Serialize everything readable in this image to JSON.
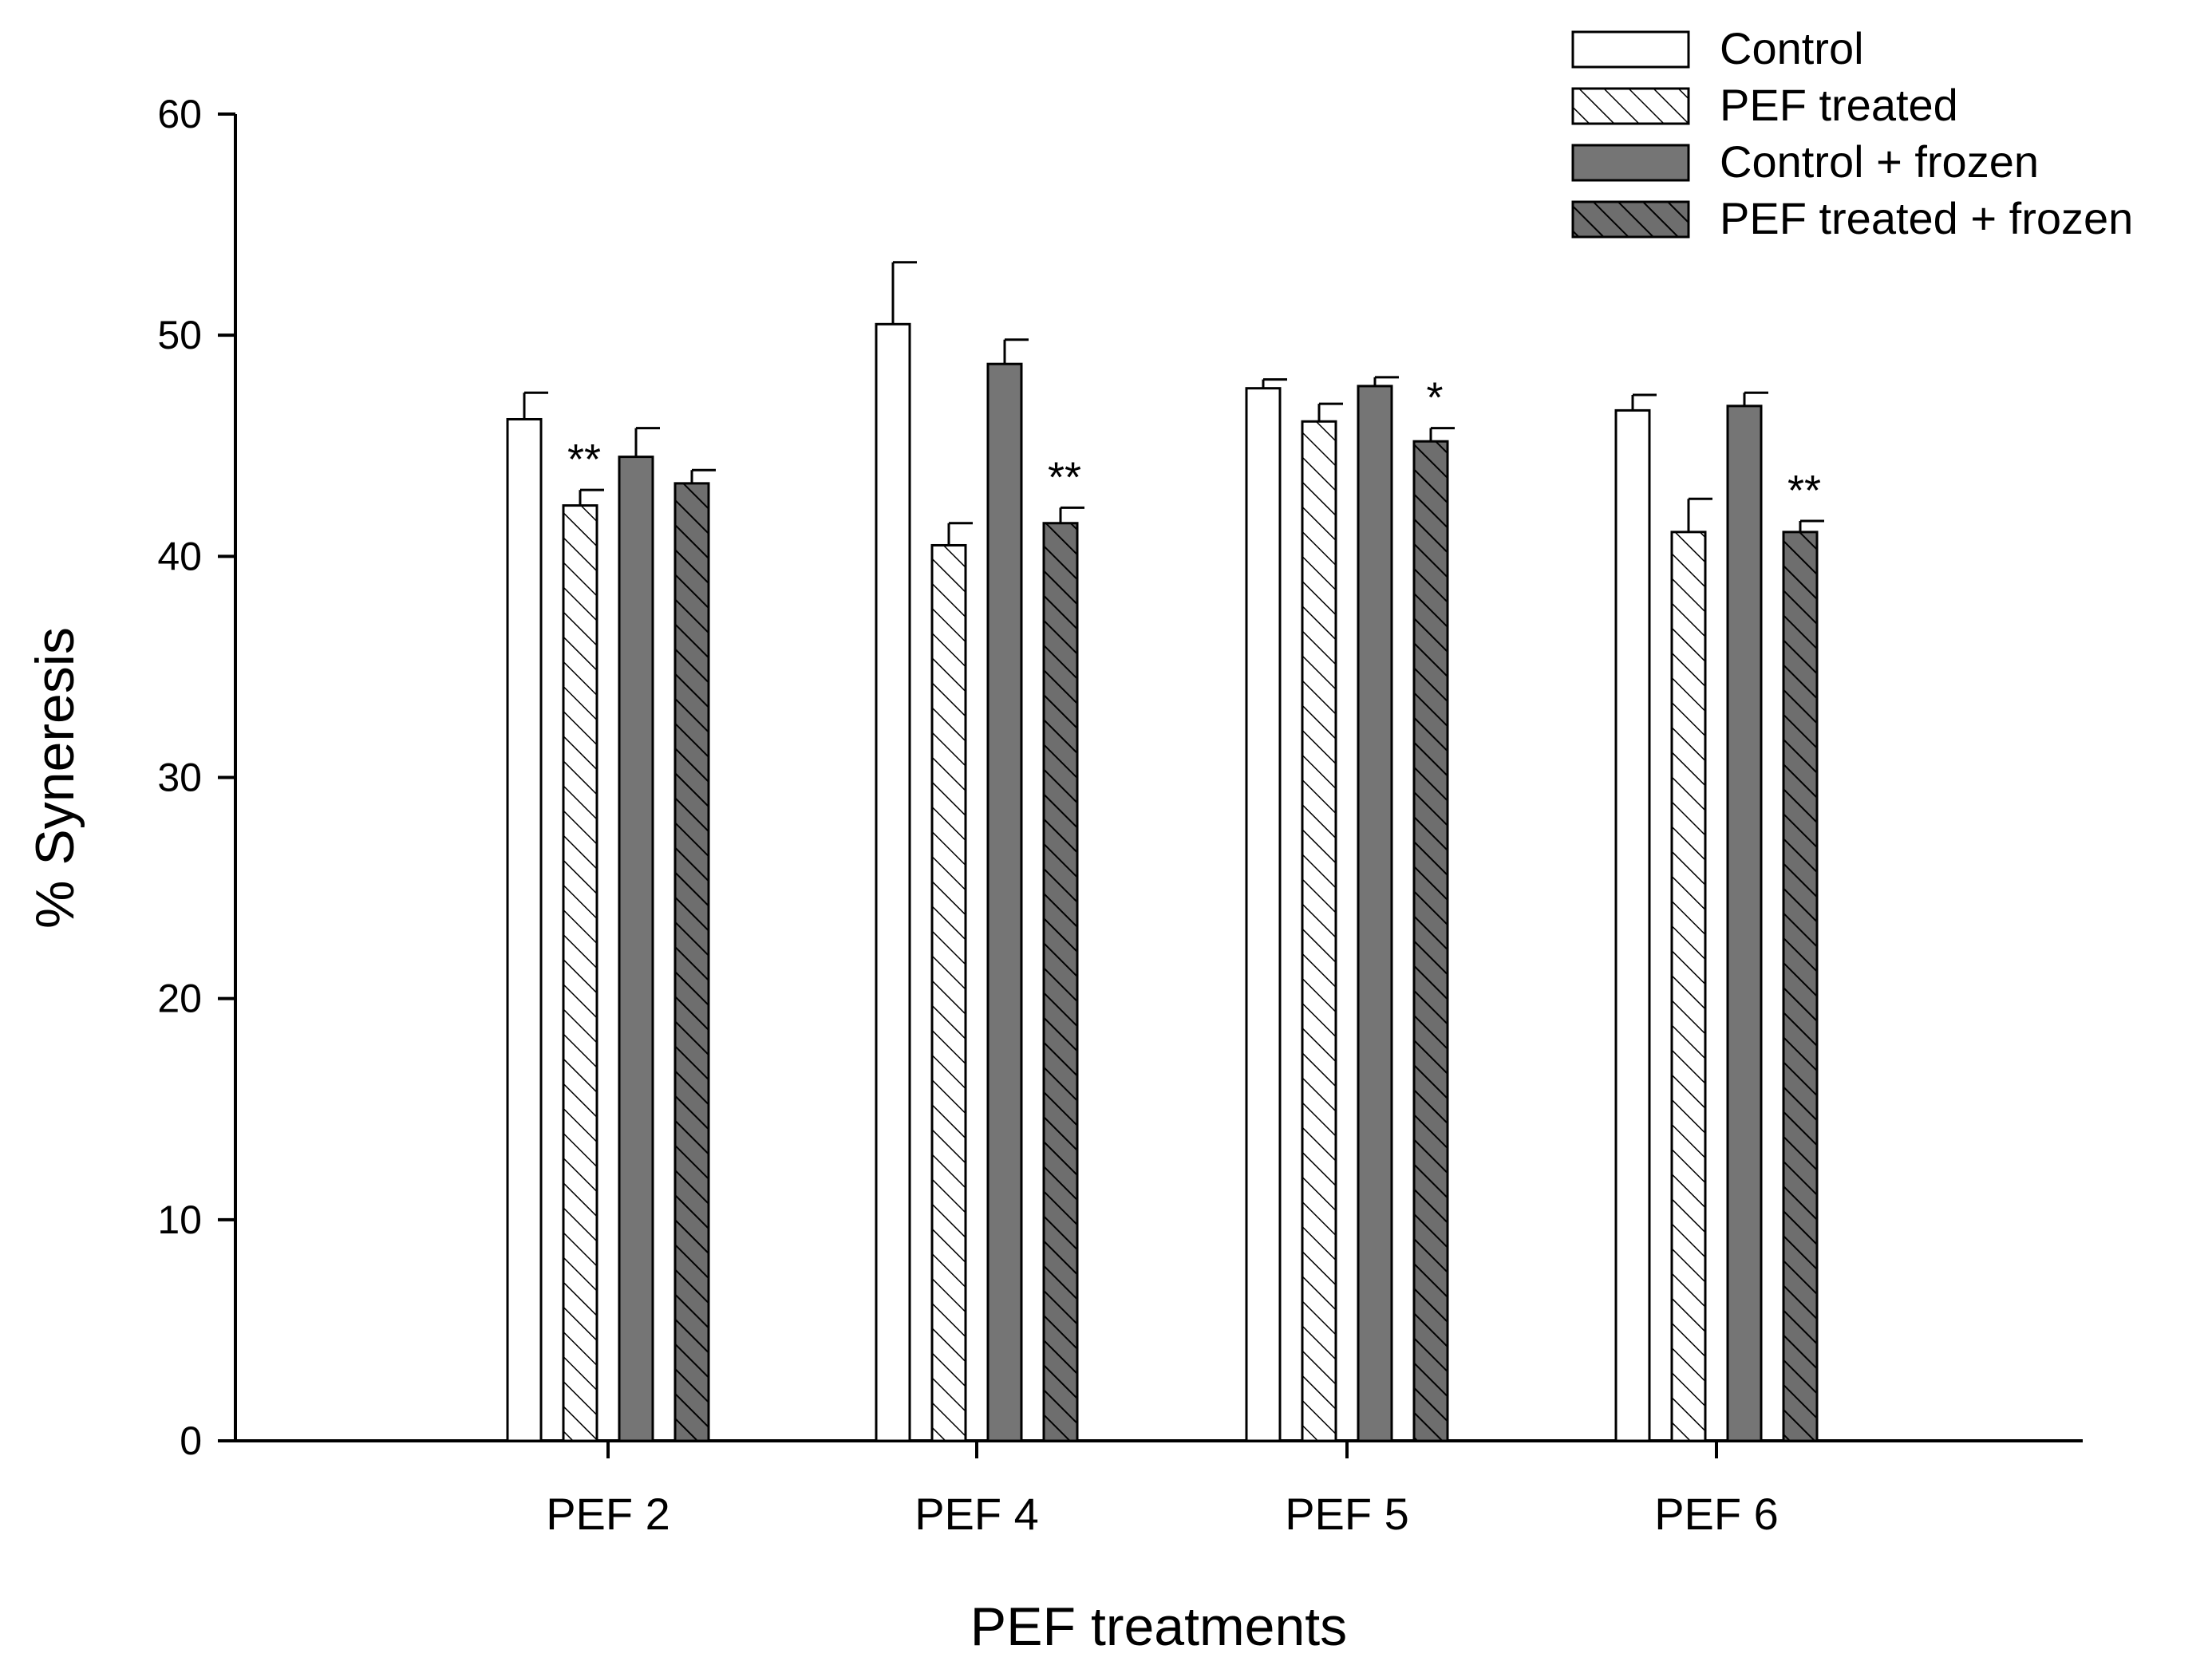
{
  "chart_data": {
    "type": "bar",
    "title": "",
    "xlabel": "PEF treatments",
    "ylabel": "% Syneresis",
    "ylim": [
      0,
      60
    ],
    "yticks": [
      0,
      10,
      20,
      30,
      40,
      50,
      60
    ],
    "grid": false,
    "legend_position": "top-right",
    "categories": [
      "PEF 2",
      "PEF 4",
      "PEF 5",
      "PEF 6"
    ],
    "series": [
      {
        "name": "Control",
        "style": "white",
        "values": [
          46.2,
          50.5,
          47.6,
          46.6
        ],
        "errors": [
          1.2,
          2.8,
          0.4,
          0.7
        ],
        "significance": [
          "",
          "",
          "",
          ""
        ]
      },
      {
        "name": "PEF treated",
        "style": "hatch-light",
        "values": [
          42.3,
          40.5,
          46.1,
          41.1
        ],
        "errors": [
          0.7,
          1.0,
          0.8,
          1.5
        ],
        "significance": [
          "**",
          "",
          "",
          ""
        ]
      },
      {
        "name": "Control + frozen",
        "style": "gray",
        "values": [
          44.5,
          48.7,
          47.7,
          46.8
        ],
        "errors": [
          1.3,
          1.1,
          0.4,
          0.6
        ],
        "significance": [
          "",
          "",
          "",
          ""
        ]
      },
      {
        "name": "PEF treated + frozen",
        "style": "hatch-dark",
        "values": [
          43.3,
          41.5,
          45.2,
          41.1
        ],
        "errors": [
          0.6,
          0.7,
          0.6,
          0.5
        ],
        "significance": [
          "",
          "**",
          "*",
          "**"
        ]
      }
    ],
    "colors": {
      "bar_gray": "#757575",
      "hatch_dark_bg": "#6e6e6e",
      "outline": "#000000",
      "white": "#ffffff"
    }
  }
}
